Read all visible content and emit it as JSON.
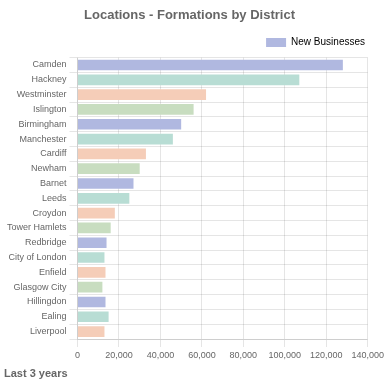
{
  "chart_data": {
    "type": "bar",
    "orientation": "horizontal",
    "title": "Locations - Formations by District",
    "annotations": [
      "Last 3 years"
    ],
    "categories": [
      "Camden",
      "Hackney",
      "Westminster",
      "Islington",
      "Birmingham",
      "Manchester",
      "Cardiff",
      "Newham",
      "Barnet",
      "Leeds",
      "Croydon",
      "Tower Hamlets",
      "Redbridge",
      "City of London",
      "Enfield",
      "Glasgow City",
      "Hillingdon",
      "Ealing",
      "Liverpool"
    ],
    "series": [
      {
        "name": "New Businesses",
        "color": "#b0b8e0",
        "colors": [
          "#b0b8e0",
          "#b8ddd4",
          "#f5cdb8",
          "#c8ddc0",
          "#b0b8e0",
          "#b8ddd4",
          "#f5cdb8",
          "#c8ddc0",
          "#b0b8e0",
          "#b8ddd4",
          "#f5cdb8",
          "#c8ddc0",
          "#b0b8e0",
          "#b8ddd4",
          "#f5cdb8",
          "#c8ddc0",
          "#b0b8e0",
          "#b8ddd4",
          "#f5cdb8"
        ],
        "values": [
          128000,
          107000,
          62000,
          56000,
          50000,
          46000,
          33000,
          30000,
          27000,
          25000,
          18000,
          16000,
          14000,
          13000,
          13500,
          12000,
          13500,
          15000,
          13000
        ]
      }
    ],
    "xlim": [
      0,
      140000
    ],
    "xticks": [
      0,
      {
        "value": 20000,
        "label": "20,000"
      },
      {
        "value": 40000,
        "label": "40,000"
      },
      {
        "value": 60000,
        "label": "60,000"
      },
      {
        "value": 80000,
        "label": "80,000"
      },
      {
        "value": 100000,
        "label": "100,000"
      },
      {
        "value": 120000,
        "label": "120,000"
      },
      {
        "value": 140000,
        "label": "140,000"
      }
    ],
    "grid": true,
    "legend": "upper right"
  }
}
